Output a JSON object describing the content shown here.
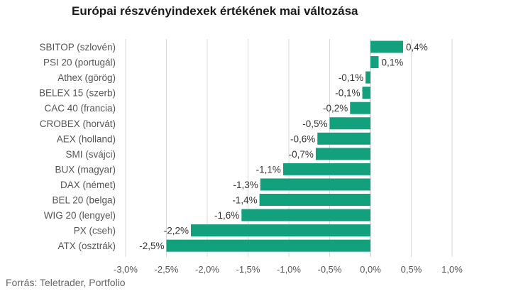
{
  "title": "Európai részvényindexek értékének mai változása",
  "source": "Forrás: Teletrader, Portfolio",
  "colors": {
    "bar": "#13a07c",
    "grid": "#d9d9d9",
    "zero": "#bfbfbf",
    "text": "#555555"
  },
  "chart_data": {
    "type": "bar",
    "orientation": "horizontal",
    "categories": [
      "SBITOP (szlovén)",
      "PSI 20 (portugál)",
      "Athex (görög)",
      "BELEX 15 (szerb)",
      "CAC 40 (francia)",
      "CROBEX (horvát)",
      "AEX (holland)",
      "SMI (svájci)",
      "BUX (magyar)",
      "DAX (német)",
      "BEL 20 (belga)",
      "WIG 20 (lengyel)",
      "PX (cseh)",
      "ATX (osztrák)"
    ],
    "values": [
      0.4,
      0.1,
      -0.06,
      -0.1,
      -0.25,
      -0.5,
      -0.65,
      -0.67,
      -1.07,
      -1.35,
      -1.36,
      -1.58,
      -2.2,
      -2.5
    ],
    "value_labels": [
      "0,4%",
      "0,1%",
      "-0,1%",
      "-0,1%",
      "-0,2%",
      "-0,5%",
      "-0,6%",
      "-0,7%",
      "-1,1%",
      "-1,3%",
      "-1,4%",
      "-1,6%",
      "-2,2%",
      "-2,5%"
    ],
    "xlim": [
      -3.0,
      1.0
    ],
    "xticks": [
      -3.0,
      -2.5,
      -2.0,
      -1.5,
      -1.0,
      -0.5,
      0.0,
      0.5,
      1.0
    ],
    "xtick_labels": [
      "-3,0%",
      "-2,5%",
      "-2,0%",
      "-1,5%",
      "-1,0%",
      "-0,5%",
      "0,0%",
      "0,5%",
      "1,0%"
    ],
    "grid": true,
    "legend": false
  }
}
